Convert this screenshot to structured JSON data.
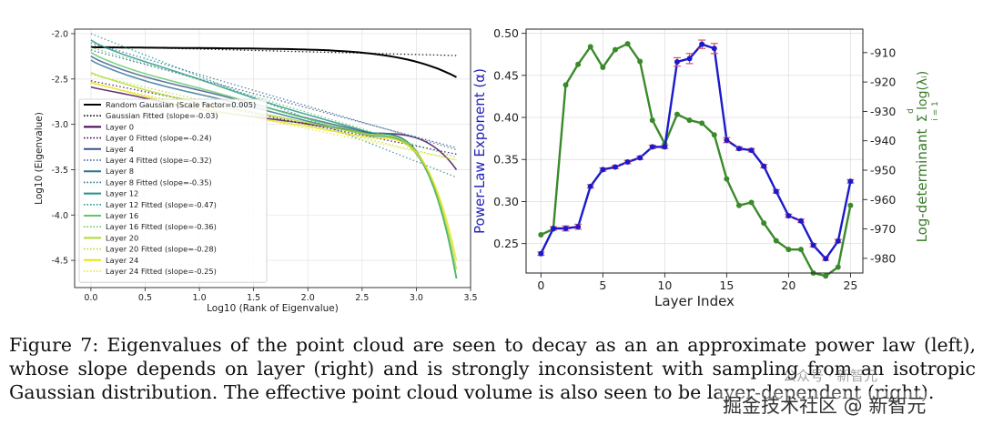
{
  "chart_data": [
    {
      "type": "line",
      "title": "",
      "xlabel": "Log10 (Rank of Eigenvalue)",
      "ylabel": "Log10 (Eigenvalue)",
      "xlim": [
        -0.15,
        3.5
      ],
      "ylim": [
        -4.8,
        -1.95
      ],
      "xticks": [
        "0.0",
        "0.5",
        "1.0",
        "1.5",
        "2.0",
        "2.5",
        "3.0",
        "3.5"
      ],
      "yticks": [
        "-2.0",
        "-2.5",
        "-3.0",
        "-3.5",
        "-4.0",
        "-4.5"
      ],
      "grid": true,
      "legend_position": "bottom-left",
      "series": [
        {
          "name": "Random Gaussian (Scale Factor=0.005)",
          "color": "#000000",
          "style": "solid",
          "start": -2.15,
          "mid": -2.18,
          "end": -2.48
        },
        {
          "name": "Gaussian Fitted (slope=-0.03)",
          "color": "#000000",
          "style": "dotted",
          "start": -2.14,
          "slope": -0.03
        },
        {
          "name": "Layer 0",
          "color": "#440154",
          "style": "solid",
          "start": -2.6,
          "mid": -3.1,
          "end": -3.5
        },
        {
          "name": "Layer 0 Fitted (slope=-0.24)",
          "color": "#440154",
          "style": "dotted",
          "start": -2.52,
          "slope": -0.24
        },
        {
          "name": "Layer 4",
          "color": "#3b528b",
          "style": "solid",
          "start": -2.25,
          "mid": -3.1,
          "end": -4.7
        },
        {
          "name": "Layer 4 Fitted (slope=-0.32)",
          "color": "#3b528b",
          "style": "dotted",
          "start": -2.18,
          "slope": -0.32
        },
        {
          "name": "Layer 8",
          "color": "#2c728e",
          "style": "solid",
          "start": -2.3,
          "mid": -3.13,
          "end": -4.7
        },
        {
          "name": "Layer 8 Fitted (slope=-0.35)",
          "color": "#2c728e",
          "style": "dotted",
          "start": -2.1,
          "slope": -0.35
        },
        {
          "name": "Layer 12",
          "color": "#21918c",
          "style": "solid",
          "start": -2.05,
          "mid": -3.1,
          "end": -4.7
        },
        {
          "name": "Layer 12 Fitted (slope=-0.47)",
          "color": "#21918c",
          "style": "dotted",
          "start": -2.0,
          "slope": -0.47
        },
        {
          "name": "Layer 16",
          "color": "#5ec962",
          "style": "solid",
          "start": -2.2,
          "mid": -3.12,
          "end": -4.7
        },
        {
          "name": "Layer 16 Fitted (slope=-0.36)",
          "color": "#5ec962",
          "style": "dotted",
          "start": -2.15,
          "slope": -0.36
        },
        {
          "name": "Layer 20",
          "color": "#addc30",
          "style": "solid",
          "start": -2.45,
          "mid": -3.12,
          "end": -4.6
        },
        {
          "name": "Layer 20 Fitted (slope=-0.28)",
          "color": "#addc30",
          "style": "dotted",
          "start": -2.45,
          "slope": -0.28
        },
        {
          "name": "Layer 24",
          "color": "#e7e419",
          "style": "solid",
          "start": -2.55,
          "mid": -3.15,
          "end": -4.5
        },
        {
          "name": "Layer 24 Fitted (slope=-0.25)",
          "color": "#e7e419",
          "style": "dotted",
          "start": -2.55,
          "slope": -0.25
        }
      ]
    },
    {
      "type": "line",
      "title": "",
      "xlabel": "Layer Index",
      "ylabel": "Power-Law Exponent (α)",
      "y2label": "Log-determinant",
      "y2label_formula": "Σ log(λᵢ)",
      "y2label_sum_upper": "d",
      "y2label_sum_lower": "i = 1",
      "xlim": [
        -1.2,
        26
      ],
      "ylim": [
        0.215,
        0.505
      ],
      "y2lim": [
        -985,
        -902
      ],
      "xticks": [
        "0",
        "5",
        "10",
        "15",
        "20",
        "25"
      ],
      "yticks": [
        "0.25",
        "0.30",
        "0.35",
        "0.40",
        "0.45",
        "0.50"
      ],
      "y2ticks": [
        "-910",
        "-920",
        "-930",
        "-940",
        "-950",
        "-960",
        "-970",
        "-980"
      ],
      "grid": true,
      "x": [
        0,
        1,
        2,
        3,
        4,
        5,
        6,
        7,
        8,
        9,
        10,
        11,
        12,
        13,
        14,
        15,
        16,
        17,
        18,
        19,
        20,
        21,
        22,
        23,
        24,
        25
      ],
      "series": [
        {
          "name": "",
          "axis": "left",
          "color": "#1a1acc",
          "error_color": "#e05060",
          "values": [
            0.238,
            0.268,
            0.268,
            0.27,
            0.318,
            0.338,
            0.341,
            0.347,
            0.352,
            0.365,
            0.365,
            0.466,
            0.47,
            0.487,
            0.482,
            0.373,
            0.363,
            0.361,
            0.342,
            0.312,
            0.283,
            0.277,
            0.248,
            0.232,
            0.253,
            0.324
          ],
          "errors": [
            0.002,
            0.002,
            0.003,
            0.003,
            0.002,
            0.002,
            0.002,
            0.002,
            0.002,
            0.002,
            0.002,
            0.005,
            0.006,
            0.005,
            0.006,
            0.003,
            0.002,
            0.002,
            0.002,
            0.002,
            0.002,
            0.002,
            0.002,
            0.002,
            0.002,
            0.002
          ]
        },
        {
          "name": "",
          "axis": "right",
          "color": "#3a8a2a",
          "values": [
            -972,
            -970,
            -921,
            -914,
            -908,
            -915,
            -909,
            -907,
            -913,
            -933,
            -941,
            -931,
            -933,
            -934,
            -938,
            -953,
            -962,
            -961,
            -968,
            -974,
            -977,
            -977,
            -985,
            -986,
            -983,
            -962
          ]
        }
      ]
    }
  ],
  "caption": "Figure 7: Eigenvalues of the point cloud are seen to decay as an an approximate power law (left), whose slope depends on layer (right) and is strongly inconsistent with sampling from an isotropic Gaussian distribution. The effective point cloud volume is also seen to be layer-dependent (right).",
  "watermark": "掘金技术社区 @ 新智元",
  "watermark_sub": "公众号 · 新智元"
}
